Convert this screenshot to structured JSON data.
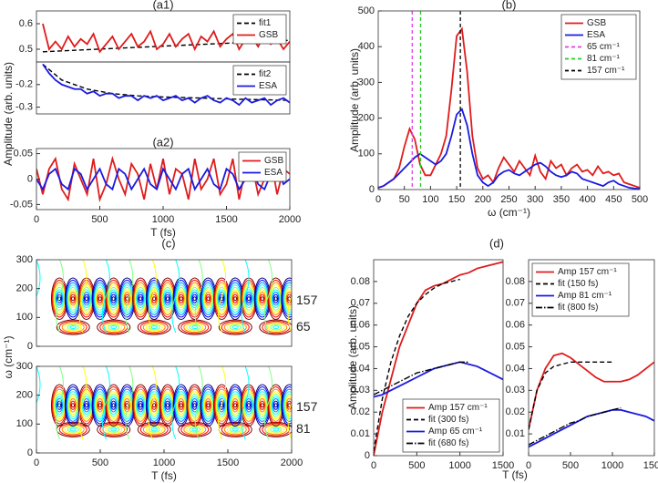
{
  "chart_data": [
    {
      "type": "line",
      "title": "(a1)",
      "ylabel": "Amplitude (arb. units)",
      "ylim": [
        0.45,
        0.65
      ],
      "yticks": [
        0.5,
        0.6
      ],
      "xlim": [
        0,
        2000
      ],
      "legend": "upper right",
      "series": [
        {
          "name": "fit1",
          "color": "#000000",
          "dash": "dashed",
          "x": [
            50,
            2000
          ],
          "values": [
            0.49,
            0.535
          ]
        },
        {
          "name": "GSB",
          "color": "#e01b1b",
          "x": [
            50,
            100,
            150,
            200,
            250,
            300,
            350,
            400,
            450,
            500,
            550,
            600,
            650,
            700,
            750,
            800,
            850,
            900,
            950,
            1000,
            1050,
            1100,
            1150,
            1200,
            1250,
            1300,
            1350,
            1400,
            1450,
            1500,
            1550,
            1600,
            1650,
            1700,
            1750,
            1800,
            1850,
            1900,
            1950,
            2000
          ],
          "values": [
            0.6,
            0.5,
            0.53,
            0.5,
            0.55,
            0.51,
            0.54,
            0.52,
            0.56,
            0.49,
            0.52,
            0.55,
            0.5,
            0.53,
            0.56,
            0.51,
            0.53,
            0.57,
            0.5,
            0.52,
            0.56,
            0.51,
            0.54,
            0.56,
            0.5,
            0.55,
            0.53,
            0.57,
            0.51,
            0.54,
            0.56,
            0.5,
            0.54,
            0.55,
            0.51,
            0.56,
            0.52,
            0.54,
            0.5,
            0.53
          ]
        }
      ]
    },
    {
      "type": "line",
      "ylim": [
        -0.33,
        -0.1
      ],
      "yticks": [
        -0.3,
        -0.2
      ],
      "xlim": [
        0,
        2000
      ],
      "legend": "upper right",
      "series": [
        {
          "name": "fit2",
          "color": "#000000",
          "dash": "dashed",
          "x": [
            50,
            200,
            400,
            600,
            800,
            1000,
            1300,
            1600,
            2000
          ],
          "values": [
            -0.11,
            -0.18,
            -0.22,
            -0.24,
            -0.25,
            -0.255,
            -0.26,
            -0.265,
            -0.27
          ]
        },
        {
          "name": "ESA",
          "color": "#1a1ae0",
          "x": [
            50,
            100,
            150,
            200,
            250,
            300,
            350,
            400,
            450,
            500,
            550,
            600,
            650,
            700,
            750,
            800,
            850,
            900,
            950,
            1000,
            1050,
            1100,
            1150,
            1200,
            1250,
            1300,
            1350,
            1400,
            1450,
            1500,
            1550,
            1600,
            1650,
            1700,
            1750,
            1800,
            1850,
            1900,
            1950,
            2000
          ],
          "values": [
            -0.11,
            -0.15,
            -0.18,
            -0.2,
            -0.21,
            -0.22,
            -0.22,
            -0.24,
            -0.23,
            -0.25,
            -0.24,
            -0.24,
            -0.26,
            -0.25,
            -0.25,
            -0.27,
            -0.25,
            -0.26,
            -0.25,
            -0.27,
            -0.26,
            -0.25,
            -0.27,
            -0.26,
            -0.28,
            -0.26,
            -0.25,
            -0.27,
            -0.28,
            -0.26,
            -0.27,
            -0.29,
            -0.26,
            -0.28,
            -0.27,
            -0.26,
            -0.29,
            -0.27,
            -0.26,
            -0.28
          ]
        }
      ]
    },
    {
      "type": "line",
      "title": "(a2)",
      "xlabel": "T (fs)",
      "xlim": [
        0,
        2000
      ],
      "xticks": [
        0,
        500,
        1000,
        1500,
        2000
      ],
      "ylim": [
        -0.06,
        0.06
      ],
      "yticks": [
        -0.05,
        0,
        0.05
      ],
      "legend": "upper right",
      "series": [
        {
          "name": "GSB",
          "color": "#e01b1b",
          "x": [
            0,
            50,
            100,
            150,
            200,
            250,
            300,
            350,
            400,
            450,
            500,
            550,
            600,
            650,
            700,
            750,
            800,
            850,
            900,
            950,
            1000,
            1050,
            1100,
            1150,
            1200,
            1250,
            1300,
            1350,
            1400,
            1450,
            1500,
            1550,
            1600,
            1650,
            1700,
            1750,
            1800,
            1850,
            1900,
            1950,
            2000
          ],
          "values": [
            0.02,
            -0.03,
            0.02,
            0.04,
            -0.02,
            -0.04,
            0.03,
            0,
            -0.03,
            0.04,
            -0.04,
            -0.01,
            0.04,
            0,
            -0.03,
            0.03,
            0.01,
            -0.04,
            0.03,
            -0.02,
            0.04,
            -0.03,
            0.02,
            0.01,
            -0.04,
            0.04,
            -0.02,
            0,
            0.04,
            -0.03,
            -0.01,
            0.04,
            -0.04,
            0.02,
            0.03,
            -0.03,
            0,
            0.04,
            -0.03,
            0.02,
            0.01
          ]
        },
        {
          "name": "ESA",
          "color": "#1a1ae0",
          "x": [
            0,
            50,
            100,
            150,
            200,
            250,
            300,
            350,
            400,
            450,
            500,
            550,
            600,
            650,
            700,
            750,
            800,
            850,
            900,
            950,
            1000,
            1050,
            1100,
            1150,
            1200,
            1250,
            1300,
            1350,
            1400,
            1450,
            1500,
            1550,
            1600,
            1650,
            1700,
            1750,
            1800,
            1850,
            1900,
            1950,
            2000
          ],
          "values": [
            0,
            -0.02,
            0.01,
            0.02,
            -0.01,
            -0.02,
            0.02,
            0.01,
            -0.02,
            0,
            0.02,
            -0.01,
            -0.02,
            0.02,
            0.01,
            -0.02,
            0,
            0.02,
            -0.01,
            -0.02,
            0.02,
            0,
            -0.02,
            0.01,
            0.02,
            -0.02,
            0,
            0.02,
            -0.01,
            -0.02,
            0.02,
            0.01,
            -0.02,
            0,
            0.02,
            -0.01,
            -0.02,
            0.01,
            0.02,
            -0.01,
            0
          ]
        }
      ]
    },
    {
      "type": "line",
      "title": "(b)",
      "xlabel": "ω (cm⁻¹)",
      "ylabel": "Amplitude (arb. units)",
      "xlim": [
        0,
        500
      ],
      "xticks": [
        0,
        50,
        100,
        150,
        200,
        250,
        300,
        350,
        400,
        450,
        500
      ],
      "ylim": [
        0,
        500
      ],
      "yticks": [
        0,
        100,
        200,
        300,
        400,
        500
      ],
      "legend": "upper right",
      "series": [
        {
          "name": "GSB",
          "color": "#e01b1b",
          "x": [
            0,
            10,
            20,
            30,
            40,
            50,
            60,
            70,
            80,
            90,
            100,
            110,
            120,
            130,
            140,
            150,
            160,
            170,
            180,
            190,
            200,
            210,
            220,
            230,
            240,
            250,
            260,
            270,
            280,
            290,
            300,
            310,
            320,
            330,
            340,
            350,
            360,
            370,
            380,
            390,
            400,
            410,
            420,
            430,
            440,
            450,
            460,
            470,
            480,
            490,
            500
          ],
          "values": [
            5,
            10,
            20,
            30,
            60,
            120,
            170,
            140,
            70,
            40,
            40,
            70,
            100,
            150,
            280,
            430,
            450,
            330,
            150,
            60,
            30,
            40,
            20,
            60,
            90,
            70,
            50,
            80,
            60,
            40,
            95,
            50,
            30,
            80,
            60,
            70,
            40,
            60,
            70,
            50,
            55,
            40,
            65,
            45,
            50,
            40,
            45,
            20,
            15,
            10,
            5
          ]
        },
        {
          "name": "ESA",
          "color": "#1a1ae0",
          "x": [
            0,
            10,
            20,
            30,
            40,
            50,
            60,
            70,
            80,
            90,
            100,
            110,
            120,
            130,
            140,
            150,
            160,
            170,
            180,
            190,
            200,
            210,
            220,
            230,
            240,
            250,
            260,
            270,
            280,
            290,
            300,
            310,
            320,
            330,
            340,
            350,
            360,
            370,
            380,
            390,
            400,
            410,
            420,
            430,
            440,
            450,
            460,
            470,
            480,
            490,
            500
          ],
          "values": [
            5,
            10,
            20,
            30,
            45,
            60,
            75,
            90,
            100,
            90,
            80,
            70,
            80,
            100,
            150,
            210,
            225,
            180,
            100,
            40,
            20,
            10,
            20,
            40,
            50,
            55,
            45,
            40,
            50,
            60,
            70,
            75,
            65,
            50,
            40,
            35,
            40,
            50,
            45,
            30,
            25,
            20,
            15,
            10,
            20,
            25,
            15,
            10,
            5,
            3,
            2
          ]
        }
      ],
      "vlines": [
        {
          "name": "65 cm⁻¹",
          "x": 65,
          "color": "#e040e0"
        },
        {
          "name": "81 cm⁻¹",
          "x": 81,
          "color": "#22cc22"
        },
        {
          "name": "157 cm⁻¹",
          "x": 157,
          "color": "#000000"
        }
      ]
    },
    {
      "type": "contour",
      "title": "(c)",
      "ylabel": "ω (cm⁻¹)",
      "xlim": [
        0,
        2000
      ],
      "ylim": [
        0,
        300
      ],
      "yticks": [
        0,
        100,
        200,
        300
      ],
      "annotations": [
        {
          "text": "157",
          "y": 157
        },
        {
          "text": "65",
          "y": 65
        }
      ]
    },
    {
      "type": "contour",
      "xlabel": "T (fs)",
      "xlim": [
        0,
        2000
      ],
      "xticks": [
        0,
        500,
        1000,
        1500,
        2000
      ],
      "ylim": [
        0,
        300
      ],
      "yticks": [
        0,
        100,
        200,
        300
      ],
      "annotations": [
        {
          "text": "157",
          "y": 157
        },
        {
          "text": "81",
          "y": 81
        }
      ]
    },
    {
      "type": "line",
      "title": "(d)",
      "xlabel": "T (fs)",
      "ylabel": "Amplitude (arb. units)",
      "xlim": [
        0,
        1500
      ],
      "xticks": [
        0,
        500,
        1000,
        1500
      ],
      "ylim": [
        0,
        0.09
      ],
      "yticks": [
        0,
        0.01,
        0.02,
        0.03,
        0.04,
        0.05,
        0.06,
        0.07,
        0.08
      ],
      "legend": "lower right",
      "series": [
        {
          "name": "Amp 157 cm⁻¹",
          "color": "#e01b1b",
          "x": [
            0,
            100,
            200,
            300,
            400,
            500,
            600,
            700,
            800,
            900,
            1000,
            1100,
            1200,
            1300,
            1400,
            1500
          ],
          "values": [
            0,
            0.02,
            0.035,
            0.05,
            0.06,
            0.07,
            0.076,
            0.078,
            0.079,
            0.081,
            0.083,
            0.084,
            0.086,
            0.087,
            0.088,
            0.089
          ]
        },
        {
          "name": "fit (300 fs)",
          "color": "#000000",
          "dash": "dashed",
          "x": [
            0,
            100,
            200,
            300,
            400,
            500,
            600,
            700,
            800,
            900,
            1000
          ],
          "values": [
            0.002,
            0.026,
            0.043,
            0.055,
            0.064,
            0.07,
            0.074,
            0.077,
            0.079,
            0.08,
            0.081
          ]
        },
        {
          "name": "Amp 65 cm⁻¹",
          "color": "#1a1ae0",
          "x": [
            0,
            100,
            200,
            300,
            400,
            500,
            600,
            700,
            800,
            900,
            1000,
            1100,
            1200,
            1300,
            1400,
            1500
          ],
          "values": [
            0.027,
            0.028,
            0.03,
            0.032,
            0.034,
            0.036,
            0.038,
            0.04,
            0.041,
            0.042,
            0.043,
            0.042,
            0.041,
            0.039,
            0.037,
            0.035
          ]
        },
        {
          "name": "fit (680 fs)",
          "color": "#000000",
          "dash": "dashdot",
          "x": [
            0,
            100,
            200,
            300,
            400,
            500,
            600,
            700,
            800,
            900,
            1000,
            1100
          ],
          "values": [
            0.028,
            0.03,
            0.032,
            0.034,
            0.036,
            0.038,
            0.039,
            0.04,
            0.041,
            0.042,
            0.043,
            0.043
          ]
        }
      ]
    },
    {
      "type": "line",
      "xlim": [
        0,
        1500
      ],
      "xticks": [
        0,
        500,
        1000,
        1500
      ],
      "ylim": [
        0,
        0.09
      ],
      "yticks": [
        0.01,
        0.02,
        0.03,
        0.04,
        0.05,
        0.06,
        0.07,
        0.08
      ],
      "legend": "upper left",
      "series": [
        {
          "name": "Amp 157 cm⁻¹",
          "color": "#e01b1b",
          "x": [
            0,
            100,
            200,
            300,
            400,
            500,
            600,
            700,
            800,
            900,
            1000,
            1100,
            1200,
            1300,
            1400,
            1500
          ],
          "values": [
            0.012,
            0.03,
            0.04,
            0.046,
            0.047,
            0.045,
            0.042,
            0.039,
            0.036,
            0.034,
            0.034,
            0.034,
            0.035,
            0.037,
            0.04,
            0.043
          ]
        },
        {
          "name": "fit (150 fs)",
          "color": "#000000",
          "dash": "dashed",
          "x": [
            0,
            100,
            200,
            300,
            400,
            500,
            600,
            700,
            800,
            900,
            1000
          ],
          "values": [
            0.012,
            0.03,
            0.038,
            0.041,
            0.042,
            0.043,
            0.043,
            0.043,
            0.043,
            0.043,
            0.043
          ]
        },
        {
          "name": "Amp 81 cm⁻¹",
          "color": "#1a1ae0",
          "x": [
            0,
            100,
            200,
            300,
            400,
            500,
            600,
            700,
            800,
            900,
            1000,
            1100,
            1200,
            1300,
            1400,
            1500
          ],
          "values": [
            0.004,
            0.006,
            0.008,
            0.01,
            0.012,
            0.014,
            0.016,
            0.018,
            0.019,
            0.02,
            0.021,
            0.021,
            0.02,
            0.019,
            0.018,
            0.016
          ]
        },
        {
          "name": "fit (800 fs)",
          "color": "#000000",
          "dash": "dashdot",
          "x": [
            0,
            100,
            200,
            300,
            400,
            500,
            600,
            700,
            800,
            900,
            1000,
            1100
          ],
          "values": [
            0.005,
            0.007,
            0.009,
            0.011,
            0.013,
            0.015,
            0.016,
            0.018,
            0.019,
            0.02,
            0.021,
            0.022
          ]
        }
      ]
    }
  ]
}
